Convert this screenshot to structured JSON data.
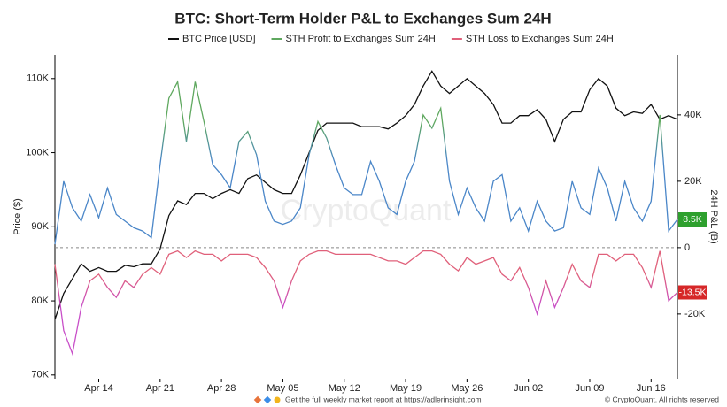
{
  "chart_data": {
    "type": "line",
    "title": "BTC: Short-Term Holder P&L to Exchanges Sum 24H",
    "ylabel": "Price ($)",
    "y2label": "24H P&L (B)",
    "watermark": "CryptoQuant",
    "footer": "Get the full weekly market report at https://adlerinsight.com",
    "copyright": "© CryptoQuant. All rights reserved",
    "x": [
      "Apr 09",
      "Apr 10",
      "Apr 11",
      "Apr 12",
      "Apr 13",
      "Apr 14",
      "Apr 15",
      "Apr 16",
      "Apr 17",
      "Apr 18",
      "Apr 19",
      "Apr 20",
      "Apr 21",
      "Apr 22",
      "Apr 23",
      "Apr 24",
      "Apr 25",
      "Apr 26",
      "Apr 27",
      "Apr 28",
      "Apr 29",
      "Apr 30",
      "May 01",
      "May 02",
      "May 03",
      "May 04",
      "May 05",
      "May 06",
      "May 07",
      "May 08",
      "May 09",
      "May 10",
      "May 11",
      "May 12",
      "May 13",
      "May 14",
      "May 15",
      "May 16",
      "May 17",
      "May 18",
      "May 19",
      "May 20",
      "May 21",
      "May 22",
      "May 23",
      "May 24",
      "May 25",
      "May 26",
      "May 27",
      "May 28",
      "May 29",
      "May 30",
      "May 31",
      "Jun 01",
      "Jun 02",
      "Jun 03",
      "Jun 04",
      "Jun 05",
      "Jun 06",
      "Jun 07",
      "Jun 08",
      "Jun 09",
      "Jun 10",
      "Jun 11",
      "Jun 12",
      "Jun 13",
      "Jun 14",
      "Jun 15",
      "Jun 16",
      "Jun 17",
      "Jun 18",
      "Jun 19"
    ],
    "xticks": [
      "Apr 14",
      "Apr 21",
      "Apr 28",
      "May 05",
      "May 12",
      "May 19",
      "May 26",
      "Jun 02",
      "Jun 09",
      "Jun 16"
    ],
    "ylim": [
      69500,
      113200
    ],
    "yticks": [
      {
        "value": 70000,
        "label": "70K"
      },
      {
        "value": 80000,
        "label": "80K"
      },
      {
        "value": 90000,
        "label": "90K"
      },
      {
        "value": 100000,
        "label": "100K"
      },
      {
        "value": 110000,
        "label": "110K"
      }
    ],
    "y2lim": [
      -39500,
      58100
    ],
    "y2ticks": [
      {
        "value": -20000,
        "label": "-20K"
      },
      0,
      {
        "value": 20000,
        "label": "20K"
      },
      {
        "value": 40000,
        "label": "40K"
      }
    ],
    "zero_line": true,
    "legend": "top",
    "series": [
      {
        "name": "BTC Price [USD]",
        "color": "#111111",
        "axis": "y",
        "values": [
          77500,
          81000,
          83000,
          85000,
          84000,
          84500,
          84000,
          84000,
          84800,
          84600,
          85000,
          85000,
          87000,
          91500,
          93500,
          93000,
          94500,
          94500,
          93800,
          94500,
          95000,
          94500,
          96500,
          97000,
          96000,
          95000,
          94500,
          94500,
          97000,
          100000,
          103000,
          104000,
          104000,
          104000,
          104000,
          103500,
          103500,
          103500,
          103200,
          104000,
          105000,
          106500,
          109000,
          111000,
          109000,
          108000,
          109000,
          110000,
          109000,
          108000,
          106500,
          104000,
          104000,
          105000,
          105000,
          105800,
          104500,
          101500,
          104500,
          105500,
          105500,
          108500,
          110000,
          109000,
          106000,
          105000,
          105500,
          105300,
          106500,
          104500,
          105000,
          104500
        ]
      },
      {
        "name": "STH Profit to Exchanges Sum 24H",
        "color": "#5fa85f",
        "color_low": "#4a86c8",
        "axis": "y2",
        "values": [
          1000,
          20000,
          12000,
          8000,
          16000,
          9000,
          18000,
          10000,
          8000,
          6000,
          5000,
          3000,
          25000,
          45000,
          50000,
          32000,
          50000,
          38000,
          25000,
          22000,
          18000,
          32000,
          35000,
          28000,
          14000,
          8000,
          7000,
          8000,
          12000,
          28000,
          38000,
          33000,
          25000,
          18000,
          16000,
          16000,
          26000,
          20000,
          12000,
          10000,
          20000,
          26000,
          40000,
          36000,
          42000,
          20000,
          10000,
          18000,
          12000,
          8000,
          20000,
          22000,
          8000,
          12000,
          5000,
          14000,
          8000,
          5000,
          6000,
          20000,
          12000,
          10000,
          24000,
          18000,
          8000,
          20000,
          12000,
          8000,
          14000,
          40000,
          5000,
          8500
        ],
        "value_labels": [
          null,
          null,
          null,
          null,
          null,
          null,
          null,
          null,
          null,
          null,
          null,
          null,
          null,
          null,
          null,
          null,
          null,
          null,
          null,
          null,
          null,
          null,
          null,
          null,
          null,
          null,
          null,
          null,
          null,
          null,
          null,
          null,
          null,
          null,
          null,
          null,
          null,
          null,
          null,
          null,
          null,
          null,
          null,
          null,
          null,
          null,
          null,
          null,
          null,
          null,
          null,
          null,
          null,
          null,
          null,
          null,
          null,
          null,
          null,
          null,
          null,
          null,
          null,
          null,
          null,
          null,
          null,
          null,
          null,
          null,
          null,
          "8.5K"
        ]
      },
      {
        "name": "STH Loss to Exchanges Sum 24H",
        "color": "#e0607a",
        "color_low": "#c84fc8",
        "axis": "y2",
        "values": [
          -5000,
          -25000,
          -32000,
          -18000,
          -10000,
          -8000,
          -12000,
          -15000,
          -10000,
          -12000,
          -8000,
          -6000,
          -8000,
          -2000,
          -1000,
          -3000,
          -1000,
          -2000,
          -2000,
          -4000,
          -2000,
          -2000,
          -2000,
          -3000,
          -6000,
          -10000,
          -18000,
          -10000,
          -4000,
          -2000,
          -1000,
          -1000,
          -2000,
          -2000,
          -2000,
          -2000,
          -2000,
          -3000,
          -4000,
          -4000,
          -5000,
          -3000,
          -1000,
          -1000,
          -2000,
          -5000,
          -7000,
          -3000,
          -5000,
          -4000,
          -3000,
          -8000,
          -10000,
          -6000,
          -12000,
          -20000,
          -10000,
          -18000,
          -12000,
          -5000,
          -10000,
          -12000,
          -2000,
          -2000,
          -4000,
          -2000,
          -2000,
          -6000,
          -12000,
          -1000,
          -16000,
          -13500
        ],
        "value_labels": [
          null,
          null,
          null,
          null,
          null,
          null,
          null,
          null,
          null,
          null,
          null,
          null,
          null,
          null,
          null,
          null,
          null,
          null,
          null,
          null,
          null,
          null,
          null,
          null,
          null,
          null,
          null,
          null,
          null,
          null,
          null,
          null,
          null,
          null,
          null,
          null,
          null,
          null,
          null,
          null,
          null,
          null,
          null,
          null,
          null,
          null,
          null,
          null,
          null,
          null,
          null,
          null,
          null,
          null,
          null,
          null,
          null,
          null,
          null,
          null,
          null,
          null,
          null,
          null,
          null,
          null,
          null,
          null,
          null,
          null,
          null,
          "-13.5K"
        ]
      }
    ]
  }
}
